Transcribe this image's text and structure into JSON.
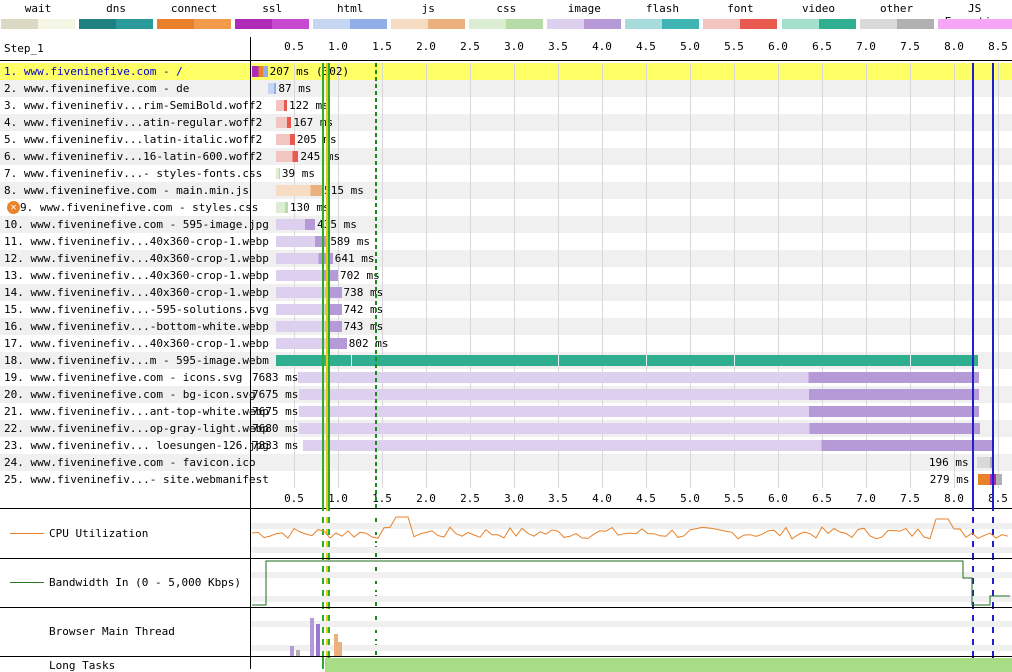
{
  "legend": [
    {
      "label": "wait",
      "colors": [
        "#d9d9c4",
        "#f5f5e6"
      ]
    },
    {
      "label": "dns",
      "colors": [
        "#1e8080",
        "#2a9a9a"
      ]
    },
    {
      "label": "connect",
      "colors": [
        "#e8812a",
        "#f09a4a"
      ]
    },
    {
      "label": "ssl",
      "colors": [
        "#b02ab8",
        "#c84ad0"
      ]
    },
    {
      "label": "html",
      "colors": [
        "#c6d6f2",
        "#92aee8"
      ]
    },
    {
      "label": "js",
      "colors": [
        "#f5dcc3",
        "#eab17e"
      ]
    },
    {
      "label": "css",
      "colors": [
        "#dcedd3",
        "#b7dba6"
      ]
    },
    {
      "label": "image",
      "colors": [
        "#dcd0ee",
        "#b69ad8"
      ]
    },
    {
      "label": "flash",
      "colors": [
        "#a8dcdc",
        "#3fb4b4"
      ]
    },
    {
      "label": "font",
      "colors": [
        "#f3c5c0",
        "#e95a4e"
      ]
    },
    {
      "label": "video",
      "colors": [
        "#a5e0cf",
        "#30ae90"
      ]
    },
    {
      "label": "other",
      "colors": [
        "#d9d9d9",
        "#b0b0b0"
      ]
    },
    {
      "label": "JS Execution",
      "colors": [
        "#f4a6f4",
        "#f4a6f4"
      ]
    }
  ],
  "step_label": "Step_1",
  "ticks": [
    "0.5",
    "1.0",
    "1.5",
    "2.0",
    "2.5",
    "3.0",
    "3.5",
    "4.0",
    "4.5",
    "5.0",
    "5.5",
    "6.0",
    "6.5",
    "7.0",
    "7.5",
    "8.0",
    "8.5"
  ],
  "rows": [
    {
      "label": "1. www.fiveninefive.com - /",
      "time": "207 ms (302)",
      "start": 0.02,
      "end": 0.2,
      "kind": "html",
      "highlight": true,
      "link": true
    },
    {
      "label": "2. www.fiveninefive.com - de",
      "time": "87 ms",
      "start": 0.21,
      "end": 0.3,
      "kind": "html"
    },
    {
      "label": "3. www.fiveninefiv...rim-SemiBold.woff2",
      "time": "122 ms",
      "start": 0.3,
      "end": 0.42,
      "kind": "font"
    },
    {
      "label": "4. www.fiveninefiv...atin-regular.woff2",
      "time": "167 ms",
      "start": 0.3,
      "end": 0.47,
      "kind": "font"
    },
    {
      "label": "5. www.fiveninefiv...latin-italic.woff2",
      "time": "205 ms",
      "start": 0.3,
      "end": 0.51,
      "kind": "font"
    },
    {
      "label": "6. www.fiveninefiv...16-latin-600.woff2",
      "time": "245 ms",
      "start": 0.3,
      "end": 0.55,
      "kind": "font"
    },
    {
      "label": "7. www.fiveninefiv...- styles-fonts.css",
      "time": "39 ms",
      "start": 0.3,
      "end": 0.34,
      "kind": "css"
    },
    {
      "label": "8. www.fiveninefive.com - main.min.js",
      "time": "515 ms",
      "start": 0.3,
      "end": 0.82,
      "kind": "js"
    },
    {
      "label": "9. www.fiveninefive.com - styles.css",
      "time": "130 ms",
      "start": 0.3,
      "end": 0.43,
      "kind": "css",
      "error": true
    },
    {
      "label": "10. www.fiveninefive.com - 595-image.jpg",
      "time": "435 ms",
      "start": 0.3,
      "end": 0.74,
      "kind": "image"
    },
    {
      "label": "11. www.fiveninefiv...40x360-crop-1.webp",
      "time": "589 ms",
      "start": 0.3,
      "end": 0.89,
      "kind": "image"
    },
    {
      "label": "12. www.fiveninefiv...40x360-crop-1.webp",
      "time": "641 ms",
      "start": 0.3,
      "end": 0.94,
      "kind": "image"
    },
    {
      "label": "13. www.fiveninefiv...40x360-crop-1.webp",
      "time": "702 ms",
      "start": 0.3,
      "end": 1.0,
      "kind": "image"
    },
    {
      "label": "14. www.fiveninefiv...40x360-crop-1.webp",
      "time": "738 ms",
      "start": 0.3,
      "end": 1.04,
      "kind": "image"
    },
    {
      "label": "15. www.fiveninefiv...-595-solutions.svg",
      "time": "742 ms",
      "start": 0.3,
      "end": 1.04,
      "kind": "image"
    },
    {
      "label": "16. www.fiveninefiv...-bottom-white.webp",
      "time": "743 ms",
      "start": 0.3,
      "end": 1.04,
      "kind": "image"
    },
    {
      "label": "17. www.fiveninefiv...40x360-crop-1.webp",
      "time": "802 ms",
      "start": 0.3,
      "end": 1.1,
      "kind": "image"
    },
    {
      "label": "18. www.fiveninefiv...m - 595-image.webm",
      "time": "",
      "start": 0.3,
      "end": 8.27,
      "kind": "video"
    },
    {
      "label": "19. www.fiveninefive.com - icons.svg",
      "time": "7683 ms",
      "start": 0.55,
      "end": 8.28,
      "kind": "image",
      "time_left": true
    },
    {
      "label": "20. www.fiveninefive.com - bg-icon.svg",
      "time": "7675 ms",
      "start": 0.56,
      "end": 8.28,
      "kind": "image",
      "time_left": true
    },
    {
      "label": "21. www.fiveninefiv...ant-top-white.webp",
      "time": "7675 ms",
      "start": 0.56,
      "end": 8.28,
      "kind": "image",
      "time_left": true
    },
    {
      "label": "22. www.fiveninefiv...op-gray-light.webp",
      "time": "7680 ms",
      "start": 0.56,
      "end": 8.29,
      "kind": "image",
      "time_left": true
    },
    {
      "label": "23. www.fiveninefiv... loesungen-126.jpg",
      "time": "7833 ms",
      "start": 0.6,
      "end": 8.45,
      "kind": "image",
      "time_left": true
    },
    {
      "label": "24. www.fiveninefive.com - favicon.ico",
      "time": "196 ms",
      "start": 8.26,
      "end": 8.46,
      "kind": "other",
      "time_left": true
    },
    {
      "label": "25. www.fiveninefiv...- site.webmanifest",
      "time": "279 ms",
      "start": 8.27,
      "end": 8.55,
      "kind": "other",
      "time_left": true
    }
  ],
  "panels": {
    "cpu": "CPU Utilization",
    "bandwidth": "Bandwidth In (0 - 5,000 Kbps)",
    "main_thread": "Browser Main Thread",
    "long_tasks": "Long Tasks"
  }
}
